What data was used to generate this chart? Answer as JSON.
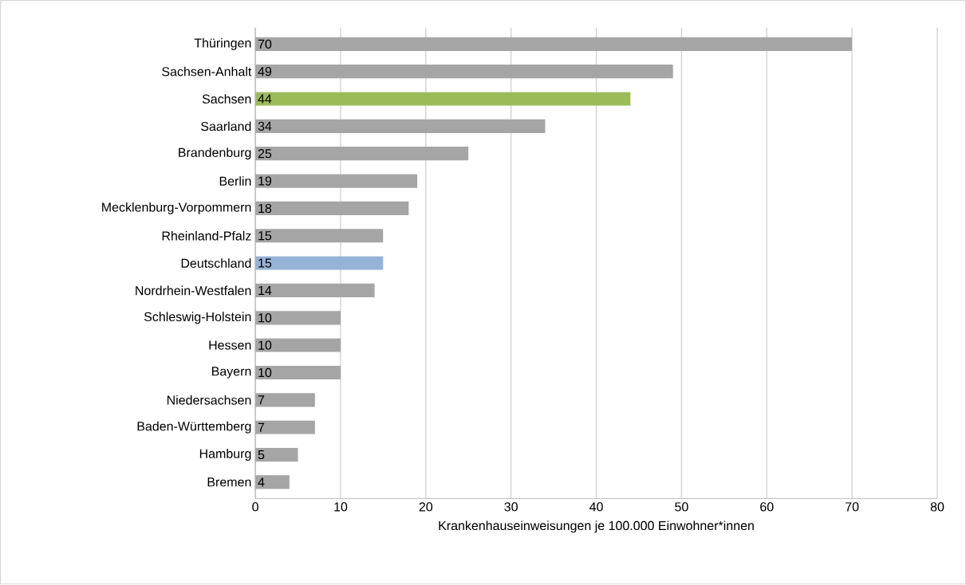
{
  "chart_data": {
    "type": "bar",
    "orientation": "horizontal",
    "xlabel": "Krankenhauseinweisungen je 100.000 Einwohner*innen",
    "categories": [
      "Thüringen",
      "Sachsen-Anhalt",
      "Sachsen",
      "Saarland",
      "Brandenburg",
      "Berlin",
      "Mecklenburg-Vorpommern",
      "Rheinland-Pfalz",
      "Deutschland",
      "Nordrhein-Westfalen",
      "Schleswig-Holstein",
      "Hessen",
      "Bayern",
      "Niedersachsen",
      "Baden-Württemberg",
      "Hamburg",
      "Bremen"
    ],
    "values": [
      70,
      49,
      44,
      34,
      25,
      19,
      18,
      15,
      15,
      14,
      10,
      10,
      10,
      7,
      7,
      5,
      4
    ],
    "colors": [
      "#a5a5a5",
      "#a5a5a5",
      "#9bbb59",
      "#a5a5a5",
      "#a5a5a5",
      "#a5a5a5",
      "#a5a5a5",
      "#a5a5a5",
      "#95b3d7",
      "#a5a5a5",
      "#a5a5a5",
      "#a5a5a5",
      "#a5a5a5",
      "#a5a5a5",
      "#a5a5a5",
      "#a5a5a5",
      "#a5a5a5"
    ],
    "xlim": [
      0,
      80
    ],
    "xticks": [
      0,
      10,
      20,
      30,
      40,
      50,
      60,
      70,
      80
    ],
    "grid": "x",
    "data_labels": true
  }
}
